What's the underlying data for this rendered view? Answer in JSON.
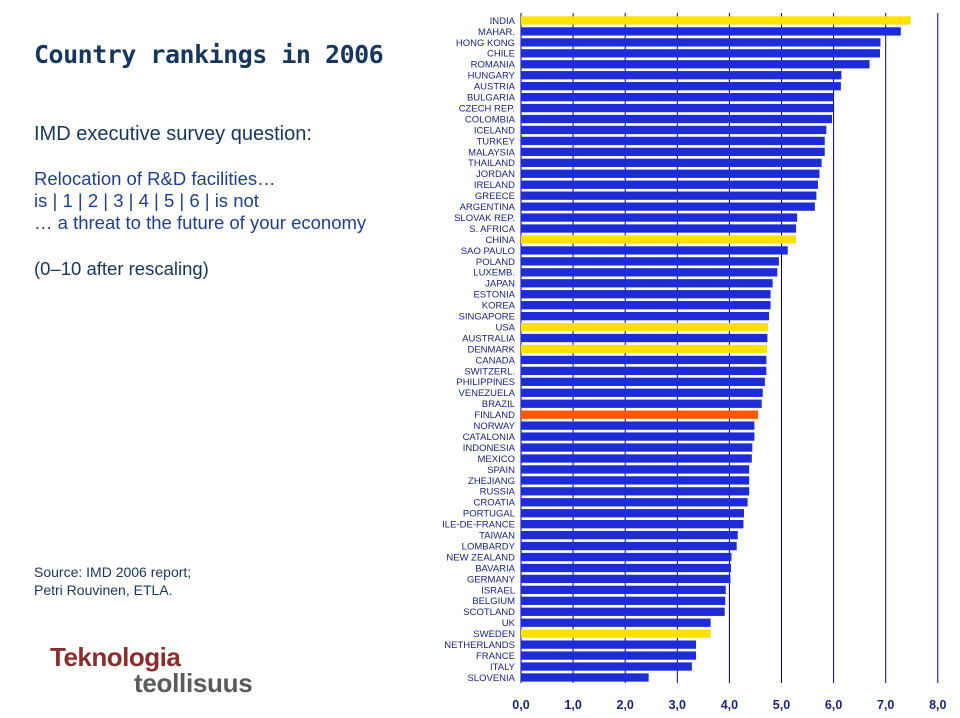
{
  "left_panel": {
    "title": "Country rankings in 2006",
    "question": "IMD executive survey question:",
    "scale_lines": [
      "Relocation of R&D facilities…",
      "is  | 1 | 2 | 3 | 4 | 5 | 6 |   is not",
      "… a threat to the future of your economy"
    ],
    "rescaling_note": "(0–10 after rescaling)",
    "source_lines": [
      "Source: IMD 2006 report;",
      "Petri Rouvinen, ETLA."
    ],
    "logo": {
      "line1": "Teknologia",
      "line2": "teollisuus"
    }
  },
  "colors": {
    "bar_default": "#1d2cd6",
    "bar_highlight_yellow": "#ffe000",
    "bar_highlight_orange": "#ff5a00",
    "gridline": "#000080",
    "text_dark": "#17365d",
    "text_blue": "#1f3f8f"
  },
  "chart_data": {
    "type": "bar",
    "orientation": "horizontal",
    "xlim": [
      0,
      8
    ],
    "x_ticks": [
      "0,0",
      "1,0",
      "2,0",
      "3,0",
      "4,0",
      "5,0",
      "6,0",
      "7,0",
      "8,0"
    ],
    "gridlines": true,
    "categories": [
      "INDIA",
      "MAHAR.",
      "HONG KONG",
      "CHILE",
      "ROMANIA",
      "HUNGARY",
      "AUSTRIA",
      "BULGARIA",
      "CZECH REP.",
      "COLOMBIA",
      "ICELAND",
      "TURKEY",
      "MALAYSIA",
      "THAILAND",
      "JORDAN",
      "IRELAND",
      "GREECE",
      "ARGENTINA",
      "SLOVAK REP.",
      "S. AFRICA",
      "CHINA",
      "SAO PAULO",
      "POLAND",
      "LUXEMB.",
      "JAPAN",
      "ESTONIA",
      "KOREA",
      "SINGAPORE",
      "USA",
      "AUSTRALIA",
      "DENMARK",
      "CANADA",
      "SWITZERL.",
      "PHILIPPINES",
      "VENEZUELA",
      "BRAZIL",
      "FINLAND",
      "NORWAY",
      "CATALONIA",
      "INDONESIA",
      "MEXICO",
      "SPAIN",
      "ZHEJIANG",
      "RUSSIA",
      "CROATIA",
      "PORTUGAL",
      "ILE-DE-FRANCE",
      "TAIWAN",
      "LOMBARDY",
      "NEW ZEALAND",
      "BAVARIA",
      "GERMANY",
      "ISRAEL",
      "BELGIUM",
      "SCOTLAND",
      "UK",
      "SWEDEN",
      "NETHERLANDS",
      "FRANCE",
      "ITALY",
      "SLOVENIA"
    ],
    "values": [
      7.48,
      7.29,
      6.9,
      6.89,
      6.69,
      6.15,
      6.14,
      6.0,
      6.0,
      5.97,
      5.86,
      5.83,
      5.83,
      5.77,
      5.73,
      5.7,
      5.67,
      5.64,
      5.3,
      5.28,
      5.28,
      5.12,
      4.95,
      4.92,
      4.83,
      4.79,
      4.79,
      4.76,
      4.74,
      4.73,
      4.72,
      4.71,
      4.71,
      4.68,
      4.64,
      4.62,
      4.55,
      4.48,
      4.48,
      4.44,
      4.43,
      4.38,
      4.38,
      4.38,
      4.35,
      4.28,
      4.27,
      4.16,
      4.14,
      4.04,
      4.03,
      4.02,
      3.93,
      3.92,
      3.91,
      3.64,
      3.64,
      3.36,
      3.36,
      3.28,
      2.45
    ],
    "highlight": {
      "INDIA": "yellow",
      "CHINA": "yellow",
      "USA": "yellow",
      "DENMARK": "yellow",
      "FINLAND": "orange",
      "SWEDEN": "yellow"
    }
  }
}
